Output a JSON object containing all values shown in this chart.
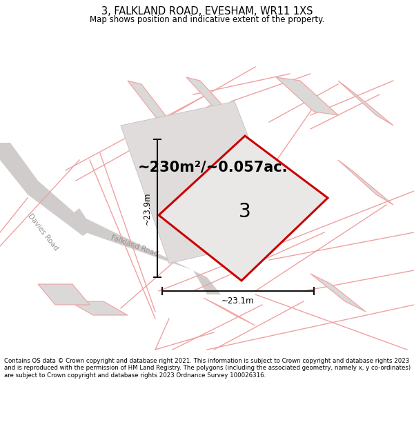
{
  "title": "3, FALKLAND ROAD, EVESHAM, WR11 1XS",
  "subtitle": "Map shows position and indicative extent of the property.",
  "area_label": "~230m²/~0.057ac.",
  "property_number": "3",
  "dim_width": "~23.1m",
  "dim_height": "~23.9m",
  "road_label_1": "Davies Road",
  "road_label_2": "Falkland Road",
  "footer": "Contains OS data © Crown copyright and database right 2021. This information is subject to Crown copyright and database rights 2023 and is reproduced with the permission of HM Land Registry. The polygons (including the associated geometry, namely x, y co-ordinates) are subject to Crown copyright and database rights 2023 Ordnance Survey 100026316.",
  "bg_color": "#f5f3f2",
  "property_fill": "#eae7e7",
  "property_edge": "#cc0000",
  "neighbor_fill": "#dbd8d8",
  "neighbor_edge": "#f0a0a0",
  "road_fill": "#d0cccc",
  "dim_line_color": "#111111",
  "title_fontsize": 10.5,
  "subtitle_fontsize": 8.5,
  "footer_fontsize": 6.2,
  "area_fontsize": 15,
  "number_fontsize": 20,
  "road_fontsize": 7.5,
  "dim_fontsize": 8.5
}
